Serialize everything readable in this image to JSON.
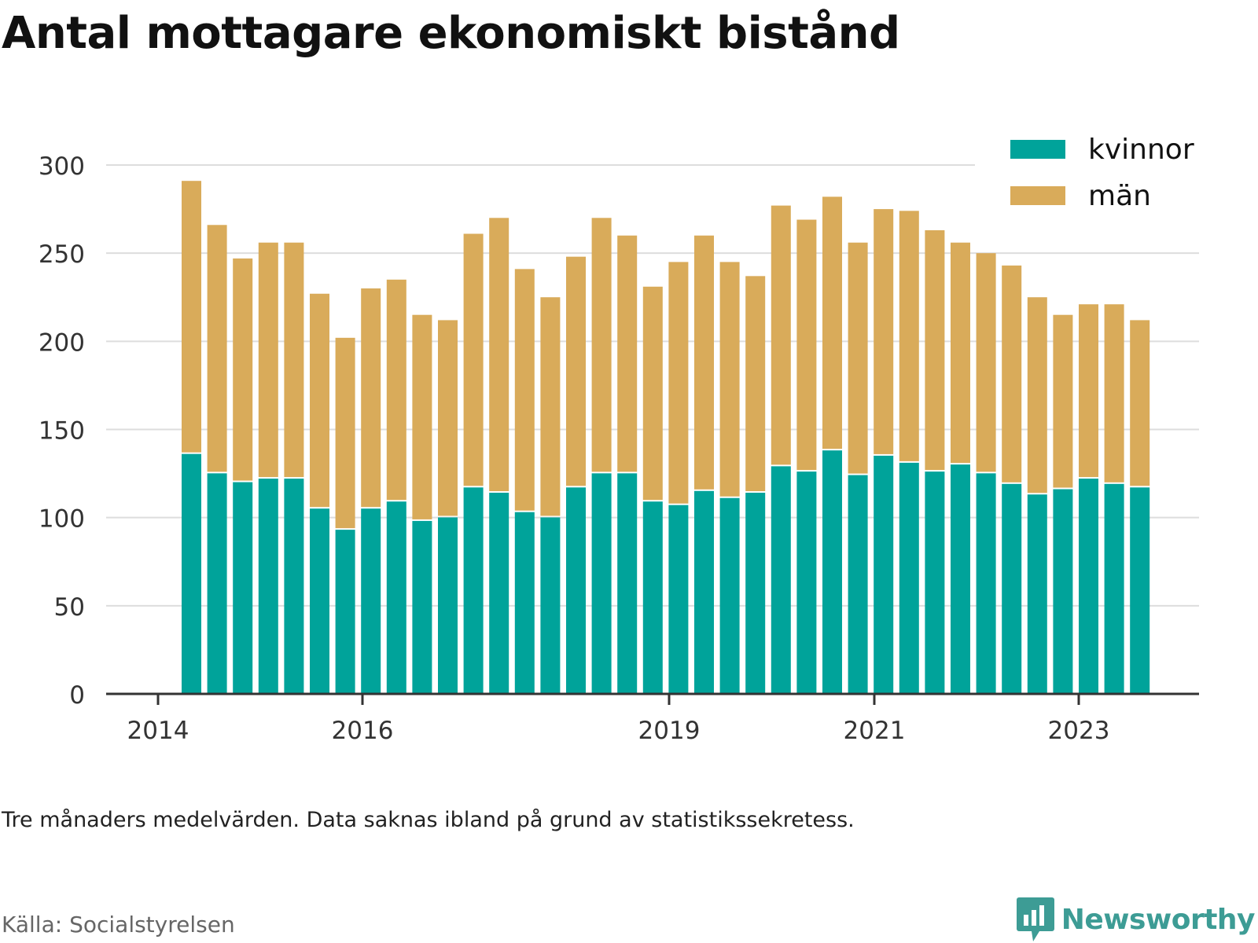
{
  "title": "Antal mottagare ekonomiskt bistånd",
  "note": "Tre månaders medelvärden. Data saknas ibland på grund av statistikssekretess.",
  "source": "Källa: Socialstyrelsen",
  "brand": "Newsworthy",
  "colors": {
    "kvinnor": "#00a39a",
    "man": "#d9ab5a",
    "grid": "#dddddd",
    "axis": "#333333",
    "brand": "#3d9c95"
  },
  "chart_data": {
    "type": "bar",
    "stacked": true,
    "x_ticks": [
      "2014",
      "2016",
      "2019",
      "2021",
      "2023"
    ],
    "y_ticks": [
      "0",
      "50",
      "100",
      "150",
      "200",
      "250",
      "300"
    ],
    "ylim": [
      0,
      300
    ],
    "grid": true,
    "legend_position": "top-right",
    "series": [
      {
        "name": "kvinnor",
        "values": [
          137,
          126,
          121,
          123,
          123,
          106,
          94,
          106,
          110,
          99,
          101,
          118,
          115,
          104,
          101,
          118,
          126,
          126,
          110,
          108,
          116,
          112,
          115,
          130,
          127,
          139,
          125,
          136,
          132,
          127,
          131,
          126,
          120,
          114,
          117,
          123,
          120,
          118
        ]
      },
      {
        "name": "män",
        "values": [
          154,
          140,
          126,
          133,
          133,
          121,
          108,
          124,
          125,
          116,
          111,
          143,
          155,
          137,
          124,
          130,
          144,
          134,
          121,
          137,
          144,
          133,
          122,
          147,
          142,
          143,
          131,
          139,
          142,
          136,
          125,
          124,
          123,
          111,
          98,
          98,
          101,
          94
        ]
      }
    ]
  }
}
